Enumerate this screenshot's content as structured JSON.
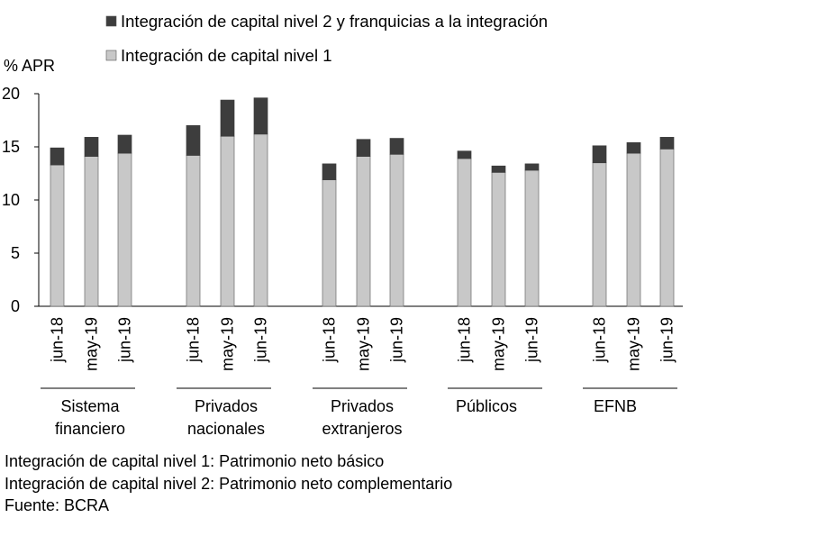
{
  "chart_data": {
    "type": "bar",
    "stacked": true,
    "ylabel": "% APR",
    "ylim": [
      0,
      20
    ],
    "yticks": [
      0,
      5,
      10,
      15,
      20
    ],
    "grid": false,
    "legend_position": "top",
    "legend": [
      {
        "label": "Integración de capital nivel 2 y franquicias a la integración",
        "color": "#3d3d3d"
      },
      {
        "label": "Integración de capital nivel 1",
        "color": "#c8c8c8"
      }
    ],
    "groups": [
      {
        "label_lines": [
          "Sistema",
          "financiero"
        ],
        "categories": [
          "jun-18",
          "may-19",
          "jun-19"
        ],
        "nivel1": [
          13.3,
          14.1,
          14.4
        ],
        "nivel2": [
          1.6,
          1.8,
          1.7
        ]
      },
      {
        "label_lines": [
          "Privados",
          "nacionales"
        ],
        "categories": [
          "jun-18",
          "may-19",
          "jun-19"
        ],
        "nivel1": [
          14.2,
          16.0,
          16.2
        ],
        "nivel2": [
          2.8,
          3.4,
          3.4
        ]
      },
      {
        "label_lines": [
          "Privados",
          "extranjeros"
        ],
        "categories": [
          "jun-18",
          "may-19",
          "jun-19"
        ],
        "nivel1": [
          11.9,
          14.1,
          14.3
        ],
        "nivel2": [
          1.5,
          1.6,
          1.5
        ]
      },
      {
        "label_lines": [
          "Públicos"
        ],
        "categories": [
          "jun-18",
          "may-19",
          "jun-19"
        ],
        "nivel1": [
          13.9,
          12.6,
          12.8
        ],
        "nivel2": [
          0.7,
          0.6,
          0.6
        ]
      },
      {
        "label_lines": [
          "EFNB"
        ],
        "categories": [
          "jun-18",
          "may-19",
          "jun-19"
        ],
        "nivel1": [
          13.5,
          14.4,
          14.8
        ],
        "nivel2": [
          1.6,
          1.0,
          1.1
        ]
      }
    ]
  },
  "notes": [
    "Integración de capital nivel 1: Patrimonio neto básico",
    "Integración de capital nivel 2: Patrimonio neto complementario",
    "Fuente: BCRA"
  ]
}
